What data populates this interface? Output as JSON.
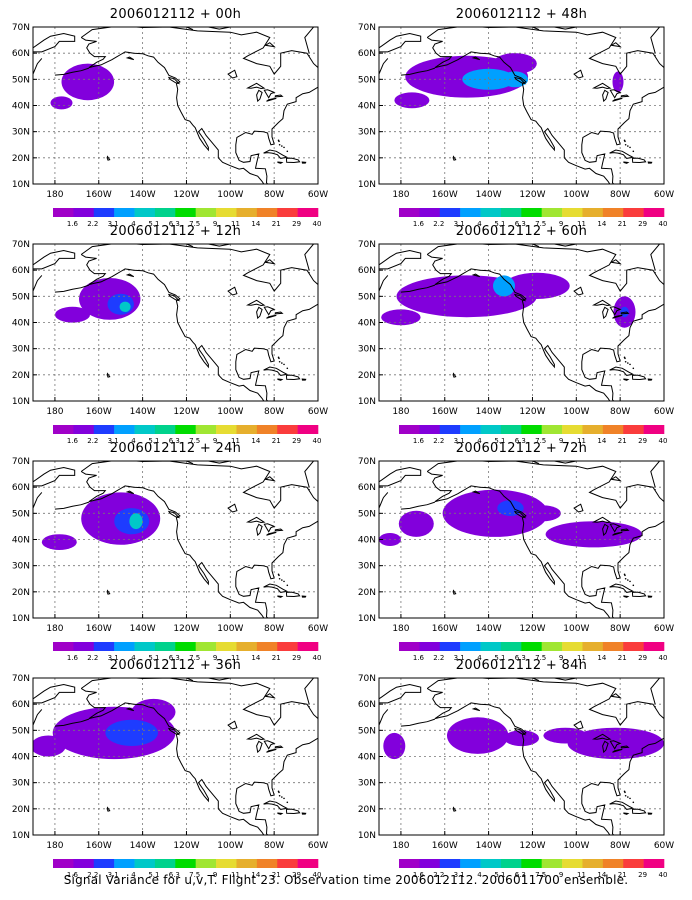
{
  "panels": [
    {
      "title": "2006012112 + 00h",
      "blobs": [
        {
          "cx": -165,
          "cy": 49,
          "rx": 12,
          "ry": 7,
          "level": 2
        },
        {
          "cx": -177,
          "cy": 41,
          "rx": 5,
          "ry": 2.5,
          "level": 2
        },
        {
          "cx": -162,
          "cy": 50,
          "rx": 6,
          "ry": 4,
          "level": 1
        }
      ]
    },
    {
      "title": "2006012112 + 48h",
      "blobs": [
        {
          "cx": -150,
          "cy": 51,
          "rx": 28,
          "ry": 8,
          "level": 2
        },
        {
          "cx": -175,
          "cy": 42,
          "rx": 8,
          "ry": 3,
          "level": 2
        },
        {
          "cx": -140,
          "cy": 50,
          "rx": 12,
          "ry": 4,
          "level": 4
        },
        {
          "cx": -128,
          "cy": 50,
          "rx": 6,
          "ry": 3,
          "level": 4
        },
        {
          "cx": -81,
          "cy": 49,
          "rx": 2.5,
          "ry": 4,
          "level": 2
        },
        {
          "cx": -128,
          "cy": 56,
          "rx": 10,
          "ry": 4,
          "level": 2
        }
      ]
    },
    {
      "title": "2006012112 + 12h",
      "blobs": [
        {
          "cx": -155,
          "cy": 49,
          "rx": 14,
          "ry": 8,
          "level": 2
        },
        {
          "cx": -172,
          "cy": 43,
          "rx": 8,
          "ry": 3,
          "level": 2
        },
        {
          "cx": -150,
          "cy": 47,
          "rx": 6,
          "ry": 4,
          "level": 3
        },
        {
          "cx": -148,
          "cy": 46,
          "rx": 2.5,
          "ry": 2,
          "level": 5
        }
      ]
    },
    {
      "title": "2006012112 + 60h",
      "blobs": [
        {
          "cx": -150,
          "cy": 50,
          "rx": 32,
          "ry": 8,
          "level": 2
        },
        {
          "cx": -180,
          "cy": 42,
          "rx": 9,
          "ry": 3,
          "level": 2
        },
        {
          "cx": -118,
          "cy": 54,
          "rx": 15,
          "ry": 5,
          "level": 2
        },
        {
          "cx": -133,
          "cy": 54,
          "rx": 5,
          "ry": 4,
          "level": 4
        },
        {
          "cx": -78,
          "cy": 44,
          "rx": 5,
          "ry": 6,
          "level": 2
        },
        {
          "cx": -78,
          "cy": 44,
          "rx": 2,
          "ry": 2,
          "level": 3
        }
      ]
    },
    {
      "title": "2006012112 + 24h",
      "blobs": [
        {
          "cx": -150,
          "cy": 48,
          "rx": 18,
          "ry": 10,
          "level": 2
        },
        {
          "cx": -178,
          "cy": 39,
          "rx": 8,
          "ry": 3,
          "level": 2
        },
        {
          "cx": -145,
          "cy": 47,
          "rx": 8,
          "ry": 5,
          "level": 3
        },
        {
          "cx": -143,
          "cy": 47,
          "rx": 3,
          "ry": 3,
          "level": 5
        }
      ]
    },
    {
      "title": "2006012112 + 72h",
      "blobs": [
        {
          "cx": -173,
          "cy": 46,
          "rx": 8,
          "ry": 5,
          "level": 2
        },
        {
          "cx": -137,
          "cy": 50,
          "rx": 24,
          "ry": 9,
          "level": 2
        },
        {
          "cx": -185,
          "cy": 40,
          "rx": 5,
          "ry": 2.5,
          "level": 2
        },
        {
          "cx": -92,
          "cy": 42,
          "rx": 22,
          "ry": 5,
          "level": 2
        },
        {
          "cx": -115,
          "cy": 50,
          "rx": 8,
          "ry": 3,
          "level": 2
        },
        {
          "cx": -130,
          "cy": 52,
          "rx": 6,
          "ry": 3,
          "level": 3
        }
      ]
    },
    {
      "title": "2006012112 + 36h",
      "blobs": [
        {
          "cx": -153,
          "cy": 49,
          "rx": 28,
          "ry": 10,
          "level": 2
        },
        {
          "cx": -183,
          "cy": 44,
          "rx": 8,
          "ry": 4,
          "level": 2
        },
        {
          "cx": -145,
          "cy": 49,
          "rx": 12,
          "ry": 5,
          "level": 3
        },
        {
          "cx": -135,
          "cy": 57,
          "rx": 10,
          "ry": 5,
          "level": 2
        }
      ]
    },
    {
      "title": "2006012112 + 84h",
      "blobs": [
        {
          "cx": -183,
          "cy": 44,
          "rx": 5,
          "ry": 5,
          "level": 2
        },
        {
          "cx": -145,
          "cy": 48,
          "rx": 14,
          "ry": 7,
          "level": 2
        },
        {
          "cx": -125,
          "cy": 47,
          "rx": 8,
          "ry": 3,
          "level": 2
        },
        {
          "cx": -82,
          "cy": 45,
          "rx": 22,
          "ry": 6,
          "level": 2
        },
        {
          "cx": -105,
          "cy": 48,
          "rx": 10,
          "ry": 3,
          "level": 2
        }
      ]
    }
  ],
  "map_extent": {
    "lon": [
      -190,
      -60
    ],
    "lat": [
      10,
      70
    ]
  },
  "axes": {
    "lat_ticks": [
      10,
      20,
      30,
      40,
      50,
      60,
      70
    ],
    "lat_labels": [
      "10N",
      "20N",
      "30N",
      "40N",
      "50N",
      "60N",
      "70N"
    ],
    "lon_ticks": [
      -180,
      -160,
      -140,
      -120,
      -100,
      -80,
      -60
    ],
    "lon_labels": [
      "180",
      "160W",
      "140W",
      "120W",
      "100W",
      "80W",
      "60W"
    ]
  },
  "colorbar": {
    "labels": [
      "1.6",
      "2.2",
      "3.1",
      "4",
      "5.1",
      "6.3",
      "7.5",
      "9",
      "11",
      "14",
      "21",
      "29",
      "40"
    ],
    "colors": [
      "#a000c8",
      "#8200dc",
      "#1e3cff",
      "#00a0ff",
      "#00c8c8",
      "#00d28c",
      "#00dc00",
      "#a0e632",
      "#e6dc32",
      "#e6af2d",
      "#f08228",
      "#fa3c3c",
      "#f00082"
    ]
  },
  "footer": "Signal Variance for u,v,T. Flight 23. Observation time 2006012112. 2006011700 ensemble."
}
